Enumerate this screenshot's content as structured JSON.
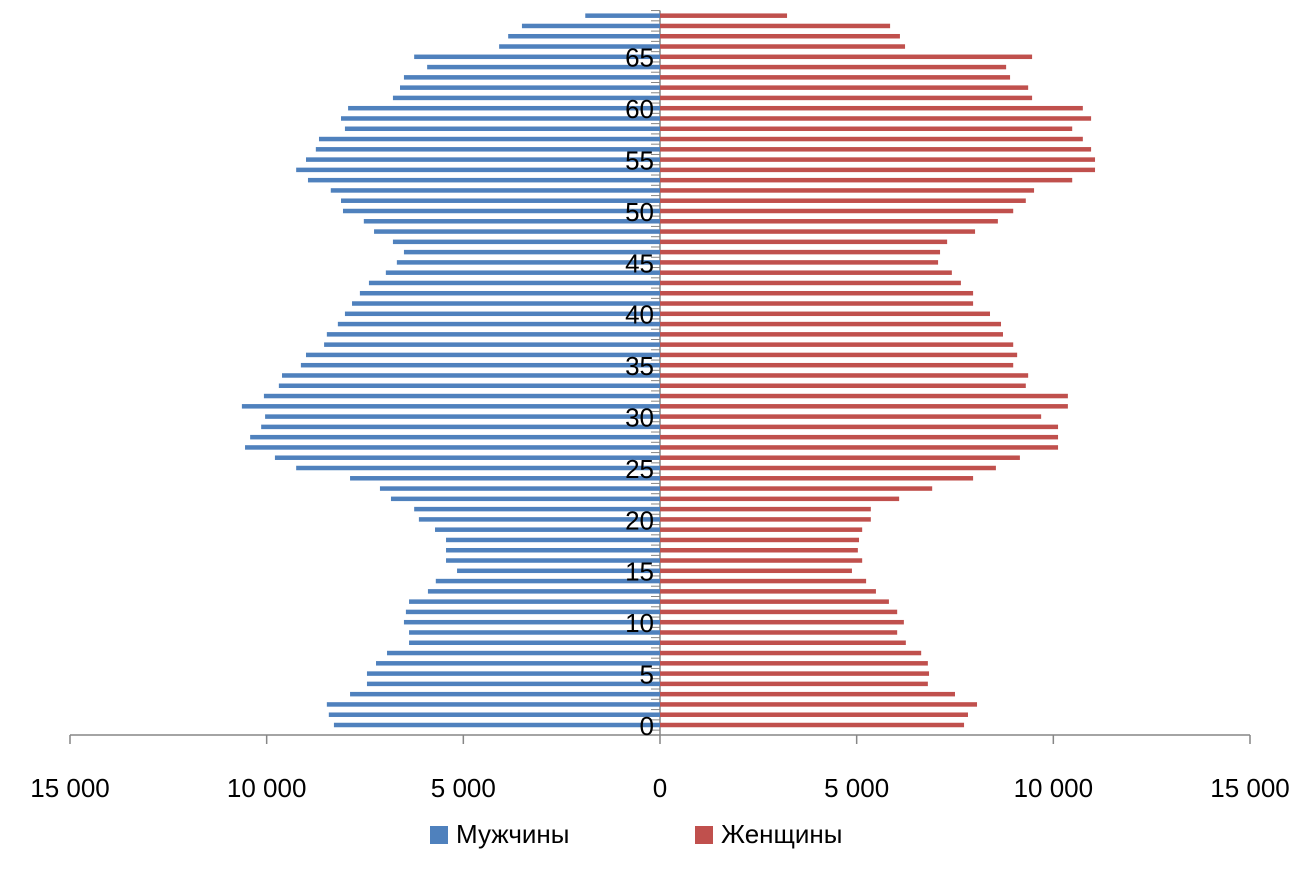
{
  "chart_data": {
    "type": "pyramid",
    "categories": [
      "0",
      null,
      null,
      null,
      null,
      "5",
      null,
      null,
      null,
      null,
      "10",
      null,
      null,
      null,
      null,
      "15",
      null,
      null,
      null,
      null,
      "20",
      null,
      null,
      null,
      null,
      "25",
      null,
      null,
      null,
      null,
      "30",
      null,
      null,
      null,
      null,
      "35",
      null,
      null,
      null,
      null,
      "40",
      null,
      null,
      null,
      null,
      "45",
      null,
      null,
      null,
      null,
      "50",
      null,
      null,
      null,
      null,
      "55",
      null,
      null,
      null,
      null,
      "60",
      null,
      null,
      null,
      null,
      "65",
      null,
      null,
      null,
      null
    ],
    "series": [
      {
        "name": "Мужчины",
        "color": "#4f81bd",
        "values": [
          -8290,
          -8420,
          -8470,
          -7880,
          -7450,
          -7450,
          -7220,
          -6940,
          -6380,
          -6380,
          -6510,
          -6460,
          -6380,
          -5900,
          -5700,
          -5160,
          -5440,
          -5440,
          -5440,
          -5720,
          -6130,
          -6250,
          -6840,
          -7120,
          -7880,
          -9250,
          -9790,
          -10550,
          -10420,
          -10140,
          -10040,
          -10630,
          -10070,
          -9690,
          -9610,
          -9130,
          -9000,
          -8540,
          -8470,
          -8190,
          -8010,
          -7830,
          -7630,
          -7400,
          -6970,
          -6690,
          -6510,
          -6790,
          -7270,
          -7530,
          -8060,
          -8110,
          -8370,
          -8950,
          -9250,
          -9000,
          -8750,
          -8670,
          -8010,
          -8110,
          -7930,
          -6790,
          -6610,
          -6510,
          -5920,
          -6250,
          -4090,
          -3860,
          -3510,
          -1900
        ]
      },
      {
        "name": "Женщины",
        "color": "#c0504d",
        "values": [
          7730,
          7830,
          8060,
          7500,
          6810,
          6840,
          6810,
          6640,
          6250,
          6030,
          6200,
          6030,
          5820,
          5490,
          5240,
          4880,
          5140,
          5030,
          5060,
          5140,
          5360,
          5360,
          6080,
          6920,
          7960,
          8540,
          9150,
          10120,
          10120,
          10120,
          9690,
          10370,
          10370,
          9300,
          9360,
          8980,
          9080,
          8980,
          8720,
          8670,
          8390,
          7960,
          7960,
          7650,
          7420,
          7070,
          7120,
          7300,
          8010,
          8590,
          8980,
          9300,
          9510,
          10480,
          11060,
          11060,
          10960,
          10750,
          10480,
          10960,
          10750,
          9460,
          9360,
          8900,
          8800,
          9460,
          6230,
          6100,
          5850,
          3230
        ]
      }
    ],
    "xlim": [
      -15000,
      15000
    ],
    "xticks": [
      {
        "value": -15000,
        "label": "15 000"
      },
      {
        "value": -10000,
        "label": "10 000"
      },
      {
        "value": -5000,
        "label": "5 000"
      },
      0,
      {
        "value": 5000,
        "label": "5 000"
      },
      {
        "value": 10000,
        "label": "10 000"
      },
      {
        "value": 15000,
        "label": "15 000"
      }
    ],
    "negative_tick_color": "#ff0000",
    "legend": "bottom"
  }
}
